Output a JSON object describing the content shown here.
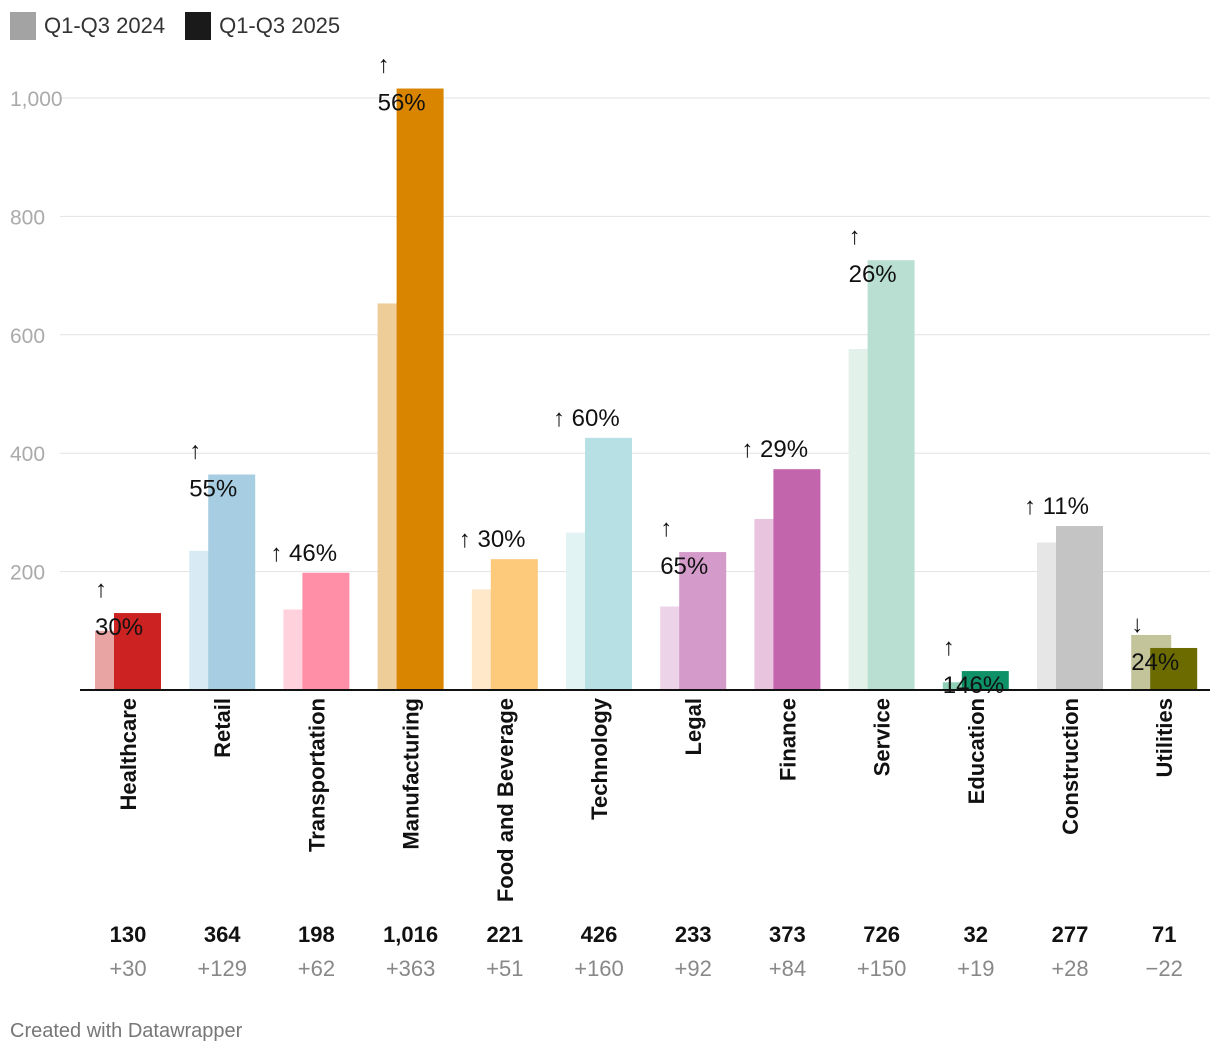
{
  "legend": [
    {
      "label": "Q1-Q3 2024",
      "color": "#a3a3a3"
    },
    {
      "label": "Q1-Q3 2025",
      "color": "#1a1a1a"
    }
  ],
  "footer": "Created with Datawrapper",
  "chart_data": {
    "type": "bar",
    "title": "",
    "xlabel": "",
    "ylabel": "",
    "ylim": [
      0,
      1000
    ],
    "yticks": [
      200,
      400,
      600,
      800,
      1000
    ],
    "ytick_labels": [
      "200",
      "400",
      "600",
      "800",
      "1,000"
    ],
    "grid": true,
    "legend_position": "top-left",
    "categories": [
      "Healthcare",
      "Retail",
      "Transportation",
      "Manufacturing",
      "Food and Beverage",
      "Technology",
      "Legal",
      "Finance",
      "Service",
      "Education",
      "Construction",
      "Utilities"
    ],
    "series": [
      {
        "name": "Q1-Q3 2024",
        "values": [
          100,
          235,
          136,
          653,
          170,
          266,
          141,
          289,
          576,
          13,
          249,
          93
        ]
      },
      {
        "name": "Q1-Q3 2025",
        "values": [
          130,
          364,
          198,
          1016,
          221,
          426,
          233,
          373,
          726,
          32,
          277,
          71
        ]
      }
    ],
    "colors_2025": [
      "#cc2222",
      "#a6cde1",
      "#ff8fa6",
      "#d98500",
      "#fdc97a",
      "#b6e0e4",
      "#d49bca",
      "#c365ac",
      "#b9dfd2",
      "#0e9166",
      "#c4c4c4",
      "#6b6b00"
    ],
    "colors_2024": [
      "#e8a3a3",
      "#d8eaf3",
      "#ffd1dc",
      "#efcd99",
      "#ffe8c9",
      "#e2f3f4",
      "#ecd3e8",
      "#e8c4de",
      "#e2f2eb",
      "#8fcfb5",
      "#e6e6e6",
      "#c4c49b"
    ],
    "pct_labels": [
      "↑\n30%",
      "↑\n55%",
      "↑ 46%",
      "↑\n56%",
      "↑ 30%",
      "↑ 60%",
      "↑\n65%",
      "↑ 29%",
      "↑\n26%",
      "↑\n146%",
      "↑ 11%",
      "↓\n24%"
    ],
    "totals": [
      "130",
      "364",
      "198",
      "1,016",
      "221",
      "426",
      "233",
      "373",
      "726",
      "32",
      "277",
      "71"
    ],
    "deltas": [
      "+30",
      "+129",
      "+62",
      "+363",
      "+51",
      "+160",
      "+92",
      "+84",
      "+150",
      "+19",
      "+28",
      "−22"
    ]
  }
}
